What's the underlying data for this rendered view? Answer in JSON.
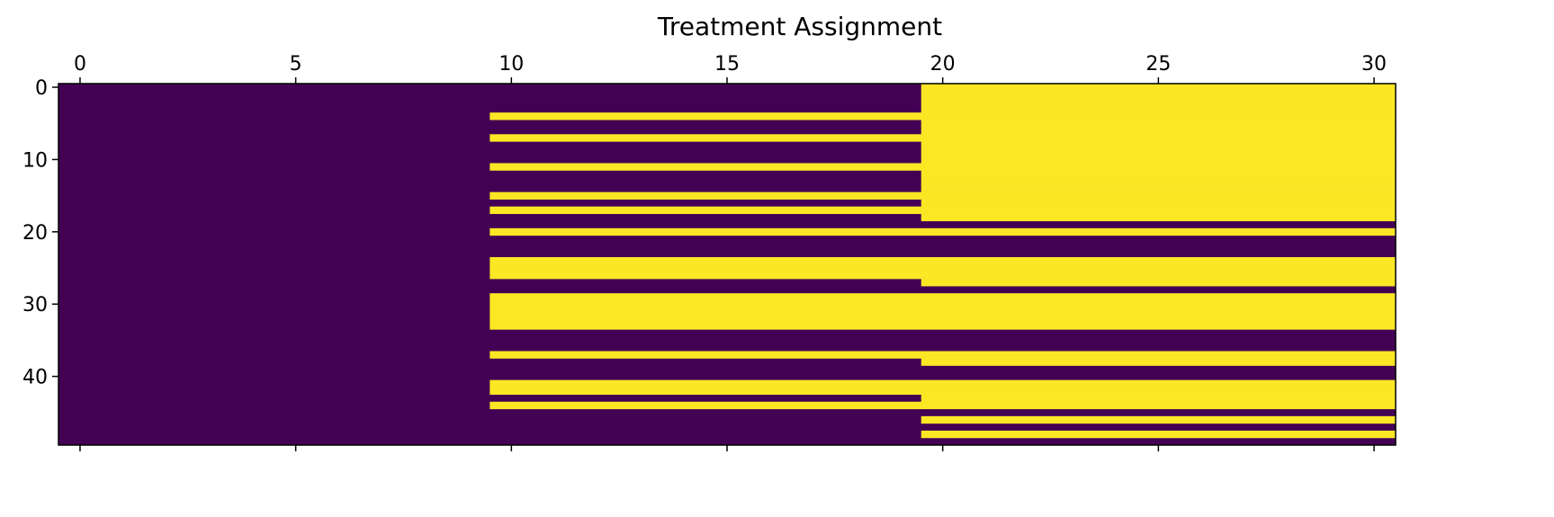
{
  "chart_data": {
    "type": "heatmap",
    "title": "Treatment Assignment",
    "xlabel": "",
    "ylabel": "",
    "x_ticks": [
      0,
      5,
      10,
      15,
      20,
      25,
      30
    ],
    "y_ticks": [
      0,
      10,
      20,
      30,
      40
    ],
    "xlim": [
      -0.5,
      30.5
    ],
    "ylim": [
      49.5,
      -0.5
    ],
    "x_axis_position": "top",
    "colormap": {
      "0": "#440154",
      "1": "#fde725"
    },
    "grid": false,
    "n_rows": 50,
    "n_cols": 31,
    "description_rule": "Each row is a unit; value 1 (treated) from the listed start column through column 30, else 0.",
    "treatment_start": [
      20,
      20,
      20,
      20,
      10,
      20,
      20,
      10,
      20,
      20,
      20,
      10,
      20,
      20,
      20,
      10,
      20,
      10,
      20,
      null,
      10,
      null,
      null,
      null,
      10,
      10,
      10,
      20,
      null,
      10,
      10,
      10,
      10,
      10,
      null,
      null,
      null,
      10,
      20,
      null,
      null,
      10,
      10,
      20,
      10,
      null,
      20,
      null,
      20,
      null
    ]
  }
}
